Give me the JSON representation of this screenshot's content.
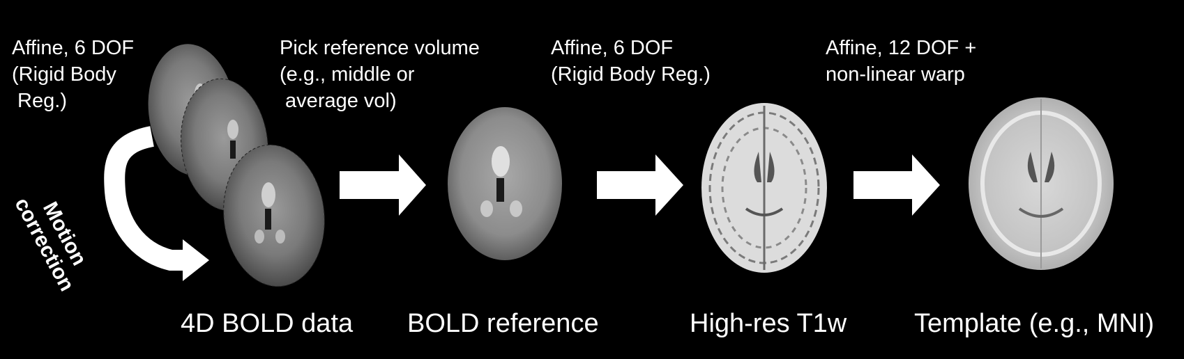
{
  "steps": [
    {
      "caption": "Affine, 6 DOF\n(Rigid Body\n Reg.)"
    },
    {
      "caption": "Pick reference volume\n(e.g., middle or\n average vol)"
    },
    {
      "caption": "Affine, 6 DOF\n(Rigid Body Reg.)"
    },
    {
      "caption": "Affine, 12 DOF +\nnon-linear warp"
    }
  ],
  "stages": [
    {
      "label": "4D BOLD data"
    },
    {
      "label": "BOLD reference"
    },
    {
      "label": "High-res T1w"
    },
    {
      "label": "Template (e.g., MNI)"
    }
  ],
  "motion_correction": {
    "line1": "Motion",
    "line2": "correction"
  },
  "colors": {
    "background": "#000000",
    "text": "#ffffff",
    "arrow": "#ffffff"
  },
  "icons": {
    "step_arrow": "right-arrow-icon",
    "motion_arrow": "curved-arrow-icon"
  }
}
